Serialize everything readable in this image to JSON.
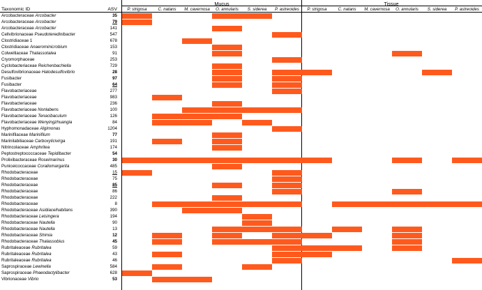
{
  "header": {
    "taxonomic_label": "Taxonomic ID",
    "asv_label": "ASV",
    "mucus_label": "Mucus",
    "tissue_label": "Tissue"
  },
  "columns": [
    "P. strigosa",
    "C. natans",
    "M. cavernosa",
    "O. annularis",
    "S. siderea",
    "P. astreoides"
  ],
  "colors": {
    "presence": "#FF5A1E",
    "lines": "#000000"
  },
  "rows": [
    {
      "family": "Arcobacteraceae",
      "genus": "Arcobacter",
      "asv": "35",
      "style": "bold",
      "mucus": [
        1,
        0,
        0,
        1,
        1,
        0
      ],
      "tissue": [
        0,
        0,
        0,
        0,
        0,
        0
      ]
    },
    {
      "family": "Arcobacteraceae",
      "genus": "Arcobacter",
      "asv": "79",
      "style": "bold-underline",
      "mucus": [
        1,
        0,
        0,
        0,
        0,
        0
      ],
      "tissue": [
        0,
        0,
        0,
        0,
        0,
        0
      ]
    },
    {
      "family": "Arcobacteraceae",
      "genus": "Arcobacter",
      "asv": "141",
      "style": "",
      "mucus": [
        0,
        0,
        0,
        1,
        0,
        0
      ],
      "tissue": [
        0,
        0,
        0,
        0,
        0,
        0
      ]
    },
    {
      "family": "Cellvibrionaceae",
      "genus": "Pseudoteredinibacter",
      "asv": "547",
      "style": "",
      "mucus": [
        0,
        0,
        0,
        0,
        0,
        1
      ],
      "tissue": [
        0,
        0,
        0,
        0,
        0,
        0
      ]
    },
    {
      "family": "Clostridiaceae 1",
      "genus": "",
      "asv": "678",
      "style": "",
      "mucus": [
        0,
        0,
        1,
        0,
        0,
        0
      ],
      "tissue": [
        0,
        0,
        0,
        0,
        0,
        0
      ]
    },
    {
      "family": "Clostridiaceae",
      "genus": "Anaerominicrobium",
      "asv": "153",
      "style": "",
      "mucus": [
        0,
        0,
        0,
        1,
        0,
        0
      ],
      "tissue": [
        0,
        0,
        0,
        0,
        0,
        0
      ]
    },
    {
      "family": "Colwelliaceae",
      "genus": "Thalassotalea",
      "asv": "91",
      "style": "",
      "mucus": [
        0,
        0,
        0,
        1,
        0,
        0
      ],
      "tissue": [
        0,
        0,
        0,
        1,
        0,
        0
      ]
    },
    {
      "family": "Cryomorphaceae",
      "genus": "",
      "asv": "253",
      "style": "",
      "mucus": [
        0,
        0,
        0,
        0,
        0,
        1
      ],
      "tissue": [
        0,
        0,
        0,
        0,
        0,
        0
      ]
    },
    {
      "family": "Cyclobacteriaceae",
      "genus": "Reichenbachiella",
      "asv": "729",
      "style": "",
      "mucus": [
        0,
        0,
        0,
        1,
        0,
        0
      ],
      "tissue": [
        0,
        0,
        0,
        0,
        0,
        0
      ]
    },
    {
      "family": "Desulfovibrionaceae",
      "genus": "Halodesulfovibrio",
      "asv": "28",
      "style": "bold",
      "mucus": [
        0,
        0,
        0,
        1,
        0,
        1
      ],
      "tissue": [
        1,
        0,
        0,
        0,
        1,
        0
      ]
    },
    {
      "family": "Fusibacter",
      "genus": "",
      "asv": "97",
      "style": "bold",
      "mucus": [
        0,
        0,
        0,
        1,
        0,
        1
      ],
      "tissue": [
        0,
        0,
        0,
        0,
        0,
        0
      ]
    },
    {
      "family": "Fusibacter",
      "genus": "",
      "asv": "64",
      "style": "bold-underline",
      "mucus": [
        0,
        0,
        0,
        1,
        0,
        1
      ],
      "tissue": [
        0,
        0,
        0,
        0,
        0,
        0
      ]
    },
    {
      "family": "Flavobacteriaceae",
      "genus": "",
      "asv": "277",
      "style": "",
      "mucus": [
        0,
        0,
        0,
        0,
        0,
        1
      ],
      "tissue": [
        0,
        0,
        0,
        0,
        0,
        0
      ]
    },
    {
      "family": "Flavobacteriaceae",
      "genus": "",
      "asv": "983",
      "style": "",
      "mucus": [
        0,
        1,
        0,
        0,
        0,
        0
      ],
      "tissue": [
        0,
        0,
        0,
        0,
        0,
        0
      ]
    },
    {
      "family": "Flavobacteriaceae",
      "genus": "",
      "asv": "236",
      "style": "",
      "mucus": [
        0,
        0,
        0,
        1,
        0,
        0
      ],
      "tissue": [
        0,
        0,
        0,
        0,
        0,
        0
      ]
    },
    {
      "family": "Flavobacteriaceae",
      "genus": "Nonlabens",
      "asv": "100",
      "style": "",
      "mucus": [
        0,
        0,
        1,
        1,
        1,
        1
      ],
      "tissue": [
        0,
        0,
        0,
        0,
        0,
        0
      ]
    },
    {
      "family": "Flavobacteriaceae",
      "genus": "Tenacibaculum",
      "asv": "126",
      "style": "",
      "mucus": [
        0,
        1,
        1,
        1,
        0,
        0
      ],
      "tissue": [
        0,
        0,
        0,
        0,
        0,
        0
      ]
    },
    {
      "family": "Flavobacteriaceae",
      "genus": "Wenyingzhuangia",
      "asv": "84",
      "style": "",
      "mucus": [
        0,
        1,
        1,
        0,
        1,
        0
      ],
      "tissue": [
        0,
        0,
        0,
        0,
        0,
        0
      ]
    },
    {
      "family": "Hyphomonadaceae",
      "genus": "Algimonas",
      "asv": "1204",
      "style": "",
      "mucus": [
        0,
        0,
        0,
        0,
        0,
        1
      ],
      "tissue": [
        0,
        0,
        0,
        0,
        0,
        0
      ]
    },
    {
      "family": "Marinifilaceae",
      "genus": "Marinifilum",
      "asv": "77",
      "style": "bold",
      "mucus": [
        0,
        0,
        0,
        1,
        0,
        0
      ],
      "tissue": [
        0,
        0,
        0,
        0,
        0,
        0
      ]
    },
    {
      "family": "Marinilabiliaceae",
      "genus": "Carboxylicivirga",
      "asv": "191",
      "style": "",
      "mucus": [
        0,
        1,
        0,
        1,
        0,
        0
      ],
      "tissue": [
        0,
        0,
        0,
        0,
        0,
        0
      ]
    },
    {
      "family": "Nitrincolaceae",
      "genus": "Amphritea",
      "asv": "174",
      "style": "",
      "mucus": [
        0,
        0,
        0,
        1,
        0,
        0
      ],
      "tissue": [
        0,
        0,
        0,
        0,
        0,
        0
      ]
    },
    {
      "family": "Peptostreptococcaceae",
      "genus": "Tepidibacter",
      "asv": "54",
      "style": "bold",
      "mucus": [
        0,
        0,
        0,
        0,
        0,
        0
      ],
      "tissue": [
        0,
        0,
        0,
        0,
        0,
        0
      ]
    },
    {
      "family": "Prolixibacteraceae",
      "genus": "Roseimarinus",
      "asv": "30",
      "style": "bold",
      "mucus": [
        1,
        1,
        1,
        1,
        1,
        1
      ],
      "tissue": [
        1,
        0,
        0,
        1,
        0,
        1
      ]
    },
    {
      "family": "Puniceicoccaceae",
      "genus": "Coraliomargarita",
      "asv": "485",
      "style": "",
      "mucus": [
        0,
        0,
        0,
        1,
        0,
        0
      ],
      "tissue": [
        0,
        0,
        0,
        0,
        0,
        0
      ]
    },
    {
      "family": "Rhodobacteraceae",
      "genus": "",
      "asv": "15",
      "style": "underline",
      "mucus": [
        1,
        0,
        0,
        0,
        0,
        1
      ],
      "tissue": [
        0,
        0,
        0,
        0,
        0,
        0
      ]
    },
    {
      "family": "Rhodobacteraceae",
      "genus": "",
      "asv": "75",
      "style": "",
      "mucus": [
        0,
        0,
        0,
        0,
        0,
        1
      ],
      "tissue": [
        0,
        0,
        0,
        0,
        0,
        0
      ]
    },
    {
      "family": "Rhodobacteraceae",
      "genus": "",
      "asv": "85",
      "style": "bold-underline",
      "mucus": [
        0,
        0,
        0,
        1,
        0,
        1
      ],
      "tissue": [
        0,
        0,
        0,
        0,
        0,
        0
      ]
    },
    {
      "family": "Rhodobacteraceae",
      "genus": "",
      "asv": "86",
      "style": "",
      "mucus": [
        0,
        0,
        0,
        0,
        0,
        1
      ],
      "tissue": [
        0,
        0,
        0,
        1,
        0,
        0
      ]
    },
    {
      "family": "Rhodobacteraceae",
      "genus": "",
      "asv": "222",
      "style": "",
      "mucus": [
        0,
        0,
        0,
        1,
        0,
        0
      ],
      "tissue": [
        0,
        0,
        0,
        0,
        0,
        0
      ]
    },
    {
      "family": "Rhodobacteraceae",
      "genus": "",
      "asv": "8",
      "style": "",
      "mucus": [
        0,
        1,
        1,
        1,
        1,
        1
      ],
      "tissue": [
        0,
        1,
        1,
        1,
        1,
        1
      ]
    },
    {
      "family": "Rhodobacteraceae",
      "genus": "Asidiaceihabitans",
      "asv": "390",
      "style": "",
      "mucus": [
        0,
        0,
        1,
        1,
        0,
        0
      ],
      "tissue": [
        0,
        0,
        0,
        0,
        0,
        0
      ]
    },
    {
      "family": "Rhodobacteraceae",
      "genus": "Leisingera",
      "asv": "194",
      "style": "",
      "mucus": [
        0,
        0,
        0,
        0,
        1,
        0
      ],
      "tissue": [
        0,
        0,
        0,
        0,
        0,
        0
      ]
    },
    {
      "family": "Rhodobacteraceae",
      "genus": "Nautella",
      "asv": "90",
      "style": "",
      "mucus": [
        0,
        0,
        0,
        0,
        1,
        0
      ],
      "tissue": [
        0,
        0,
        0,
        0,
        0,
        0
      ]
    },
    {
      "family": "Rhodobacteraceae",
      "genus": "Nautella",
      "asv": "13",
      "style": "",
      "mucus": [
        0,
        0,
        0,
        1,
        1,
        1
      ],
      "tissue": [
        0,
        1,
        0,
        1,
        0,
        0
      ]
    },
    {
      "family": "Rhodobacteraceae",
      "genus": "Shimia",
      "asv": "12",
      "style": "bold",
      "mucus": [
        0,
        1,
        0,
        1,
        0,
        1
      ],
      "tissue": [
        1,
        0,
        0,
        1,
        0,
        0
      ]
    },
    {
      "family": "Rhodobacteraceae",
      "genus": "Thalassobius",
      "asv": "45",
      "style": "bold",
      "mucus": [
        0,
        1,
        0,
        1,
        1,
        1
      ],
      "tissue": [
        0,
        0,
        0,
        1,
        0,
        0
      ]
    },
    {
      "family": "Rubritaleaceae",
      "genus": "Rubritalea",
      "asv": "59",
      "style": "",
      "mucus": [
        0,
        0,
        0,
        0,
        0,
        1
      ],
      "tissue": [
        1,
        1,
        0,
        1,
        0,
        0
      ]
    },
    {
      "family": "Rubritaleaceae",
      "genus": "Rubritalea",
      "asv": "43",
      "style": "",
      "mucus": [
        0,
        1,
        0,
        0,
        0,
        1
      ],
      "tissue": [
        1,
        0,
        0,
        0,
        0,
        0
      ]
    },
    {
      "family": "Rubritaleaceae",
      "genus": "Rubritalea",
      "asv": "46",
      "style": "",
      "mucus": [
        0,
        0,
        0,
        0,
        0,
        1
      ],
      "tissue": [
        0,
        0,
        0,
        0,
        0,
        1
      ]
    },
    {
      "family": "Saprospiraceae",
      "genus": "Lewinella",
      "asv": "584",
      "style": "",
      "mucus": [
        0,
        1,
        0,
        0,
        1,
        0
      ],
      "tissue": [
        0,
        0,
        0,
        0,
        0,
        0
      ]
    },
    {
      "family": "Saprospiraceae",
      "genus": "Phaeodactylibacter",
      "asv": "628",
      "style": "",
      "mucus": [
        1,
        0,
        0,
        0,
        0,
        0
      ],
      "tissue": [
        0,
        0,
        0,
        0,
        0,
        0
      ]
    },
    {
      "family": "Vibrionaceae",
      "genus": "Vibrio",
      "asv": "53",
      "style": "bold",
      "mucus": [
        0,
        1,
        1,
        0,
        0,
        0
      ],
      "tissue": [
        0,
        0,
        0,
        0,
        0,
        0
      ]
    }
  ]
}
